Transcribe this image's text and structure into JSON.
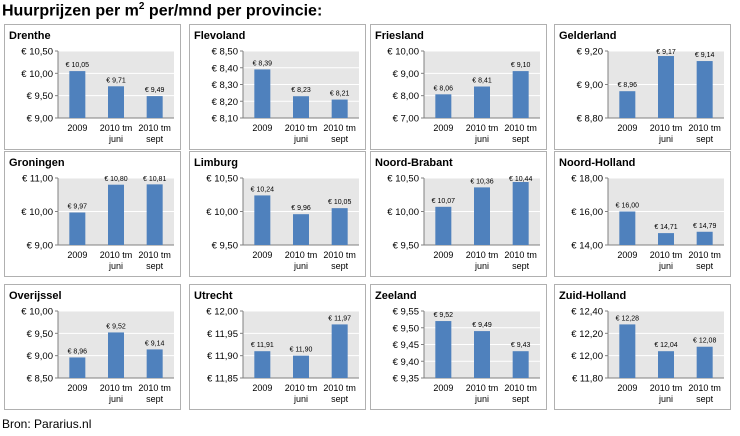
{
  "title_main": "Huurprijzen per m",
  "title_sup": "2",
  "title_rest": " per/mnd per provincie:",
  "source": "Bron: Pararius.nl",
  "colors": {
    "bar": "#4f81bd",
    "plot_bg": "#e6e6e6",
    "frame": "#b0b0b0",
    "grid": "#ffffff"
  },
  "chart_data": [
    {
      "type": "bar",
      "title": "Drenthe",
      "categories": [
        [
          "2009"
        ],
        [
          "2010 tm",
          "juni"
        ],
        [
          "2010 tm",
          "sept"
        ]
      ],
      "values": [
        10.05,
        9.71,
        9.49
      ],
      "value_labels": [
        "€ 10,05",
        "€ 9,71",
        "€ 9,49"
      ],
      "yticks": [
        9.0,
        9.5,
        10.0,
        10.5
      ],
      "ytick_labels": [
        "€ 9,00",
        "€ 9,50",
        "€ 10,00",
        "€ 10,50"
      ],
      "ylim": [
        9.0,
        10.5
      ]
    },
    {
      "type": "bar",
      "title": "Flevoland",
      "categories": [
        [
          "2009"
        ],
        [
          "2010 tm",
          "juni"
        ],
        [
          "2010 tm",
          "sept"
        ]
      ],
      "values": [
        8.39,
        8.23,
        8.21
      ],
      "value_labels": [
        "€ 8,39",
        "€ 8,23",
        "€ 8,21"
      ],
      "yticks": [
        8.1,
        8.2,
        8.3,
        8.4,
        8.5
      ],
      "ytick_labels": [
        "€ 8,10",
        "€ 8,20",
        "€ 8,30",
        "€ 8,40",
        "€ 8,50"
      ],
      "ylim": [
        8.1,
        8.5
      ]
    },
    {
      "type": "bar",
      "title": "Friesland",
      "categories": [
        [
          "2009"
        ],
        [
          "2010 tm",
          "juni"
        ],
        [
          "2010 tm",
          "sept"
        ]
      ],
      "values": [
        8.06,
        8.41,
        9.1
      ],
      "value_labels": [
        "€ 8,06",
        "€ 8,41",
        "€ 9,10"
      ],
      "yticks": [
        7.0,
        8.0,
        9.0,
        10.0
      ],
      "ytick_labels": [
        "€ 7,00",
        "€ 8,00",
        "€ 9,00",
        "€ 10,00"
      ],
      "ylim": [
        7.0,
        10.0
      ]
    },
    {
      "type": "bar",
      "title": "Gelderland",
      "categories": [
        [
          "2009"
        ],
        [
          "2010 tm",
          "juni"
        ],
        [
          "2010 tm",
          "sept"
        ]
      ],
      "values": [
        8.96,
        9.17,
        9.14
      ],
      "value_labels": [
        "€ 8,96",
        "€ 9,17",
        "€ 9,14"
      ],
      "yticks": [
        8.8,
        9.0,
        9.2
      ],
      "ytick_labels": [
        "€ 8,80",
        "€ 9,00",
        "€ 9,20"
      ],
      "ylim": [
        8.8,
        9.2
      ]
    },
    {
      "type": "bar",
      "title": "Groningen",
      "categories": [
        [
          "2009"
        ],
        [
          "2010 tm",
          "juni"
        ],
        [
          "2010 tm",
          "sept"
        ]
      ],
      "values": [
        9.97,
        10.8,
        10.81
      ],
      "value_labels": [
        "€ 9,97",
        "€ 10,80",
        "€ 10,81"
      ],
      "yticks": [
        9.0,
        10.0,
        11.0
      ],
      "ytick_labels": [
        "€ 9,00",
        "€ 10,00",
        "€ 11,00"
      ],
      "ylim": [
        9.0,
        11.0
      ]
    },
    {
      "type": "bar",
      "title": "Limburg",
      "categories": [
        [
          "2009"
        ],
        [
          "2010 tm",
          "juni"
        ],
        [
          "2010 tm",
          "sept"
        ]
      ],
      "values": [
        10.24,
        9.96,
        10.05
      ],
      "value_labels": [
        "€ 10,24",
        "€ 9,96",
        "€ 10,05"
      ],
      "yticks": [
        9.5,
        10.0,
        10.5
      ],
      "ytick_labels": [
        "€ 9,50",
        "€ 10,00",
        "€ 10,50"
      ],
      "ylim": [
        9.5,
        10.5
      ]
    },
    {
      "type": "bar",
      "title": "Noord-Brabant",
      "categories": [
        [
          "2009"
        ],
        [
          "2010 tm",
          "juni"
        ],
        [
          "2010 tm",
          "sept"
        ]
      ],
      "values": [
        10.07,
        10.36,
        10.44
      ],
      "value_labels": [
        "€ 10,07",
        "€ 10,36",
        "€ 10,44"
      ],
      "yticks": [
        9.5,
        10.0,
        10.5
      ],
      "ytick_labels": [
        "€ 9,50",
        "€ 10,00",
        "€ 10,50"
      ],
      "ylim": [
        9.5,
        10.5
      ]
    },
    {
      "type": "bar",
      "title": "Noord-Holland",
      "categories": [
        [
          "2009"
        ],
        [
          "2010 tm",
          "juni"
        ],
        [
          "2010 tm",
          "sept"
        ]
      ],
      "values": [
        16.0,
        14.71,
        14.79
      ],
      "value_labels": [
        "€ 16,00",
        "€ 14,71",
        "€ 14,79"
      ],
      "yticks": [
        14.0,
        16.0,
        18.0
      ],
      "ytick_labels": [
        "€ 14,00",
        "€ 16,00",
        "€ 18,00"
      ],
      "ylim": [
        14.0,
        18.0
      ]
    },
    {
      "type": "bar",
      "title": "Overijssel",
      "categories": [
        [
          "2009"
        ],
        [
          "2010 tm",
          "juni"
        ],
        [
          "2010 tm",
          "sept"
        ]
      ],
      "values": [
        8.96,
        9.52,
        9.14
      ],
      "value_labels": [
        "€ 8,96",
        "€ 9,52",
        "€ 9,14"
      ],
      "yticks": [
        8.5,
        9.0,
        9.5,
        10.0
      ],
      "ytick_labels": [
        "€ 8,50",
        "€ 9,00",
        "€ 9,50",
        "€ 10,00"
      ],
      "ylim": [
        8.5,
        10.0
      ]
    },
    {
      "type": "bar",
      "title": "Utrecht",
      "categories": [
        [
          "2009"
        ],
        [
          "2010 tm",
          "juni"
        ],
        [
          "2010 tm",
          "sept"
        ]
      ],
      "values": [
        11.91,
        11.9,
        11.97
      ],
      "value_labels": [
        "€ 11,91",
        "€ 11,90",
        "€ 11,97"
      ],
      "yticks": [
        11.85,
        11.9,
        11.95,
        12.0
      ],
      "ytick_labels": [
        "€ 11,85",
        "€ 11,90",
        "€ 11,95",
        "€ 12,00"
      ],
      "ylim": [
        11.85,
        12.0
      ]
    },
    {
      "type": "bar",
      "title": "Zeeland",
      "categories": [
        [
          "2009"
        ],
        [
          "2010 tm",
          "juni"
        ],
        [
          "2010 tm",
          "sept"
        ]
      ],
      "values": [
        9.52,
        9.49,
        9.43
      ],
      "value_labels": [
        "€ 9,52",
        "€ 9,49",
        "€ 9,43"
      ],
      "yticks": [
        9.35,
        9.4,
        9.45,
        9.5,
        9.55
      ],
      "ytick_labels": [
        "€ 9,35",
        "€ 9,40",
        "€ 9,45",
        "€ 9,50",
        "€ 9,55"
      ],
      "ylim": [
        9.35,
        9.55
      ]
    },
    {
      "type": "bar",
      "title": "Zuid-Holland",
      "categories": [
        [
          "2009"
        ],
        [
          "2010 tm",
          "juni"
        ],
        [
          "2010 tm",
          "sept"
        ]
      ],
      "values": [
        12.28,
        12.04,
        12.08
      ],
      "value_labels": [
        "€ 12,28",
        "€ 12,04",
        "€ 12,08"
      ],
      "yticks": [
        11.8,
        12.0,
        12.2,
        12.4
      ],
      "ytick_labels": [
        "€ 11,80",
        "€ 12,00",
        "€ 12,20",
        "€ 12,40"
      ],
      "ylim": [
        11.8,
        12.4
      ]
    }
  ]
}
